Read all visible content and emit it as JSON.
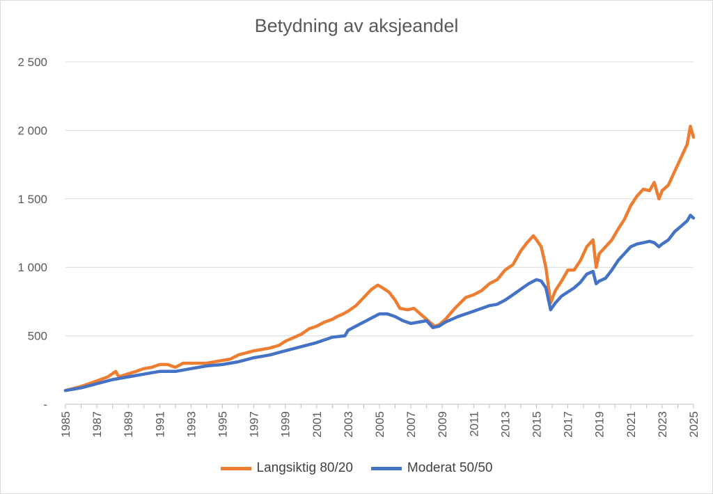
{
  "chart_data": {
    "type": "line",
    "title": "Betydning av aksjeandel",
    "xlabel": "",
    "ylabel": "",
    "xlim": [
      1985,
      2025
    ],
    "ylim": [
      0,
      2500
    ],
    "y_ticks": [
      0,
      500,
      1000,
      1500,
      2000,
      2500
    ],
    "y_tick_labels": [
      "-",
      "500",
      "1 000",
      "1 500",
      "2 000",
      "2 500"
    ],
    "x_tick_labels": [
      "1985",
      "1987",
      "1989",
      "1991",
      "1993",
      "1995",
      "1997",
      "1999",
      "2001",
      "2003",
      "2005",
      "2007",
      "2009",
      "2011",
      "2013",
      "2015",
      "2017",
      "2019",
      "2021",
      "2023",
      "2025"
    ],
    "grid": true,
    "legend": "bottom",
    "series": [
      {
        "name": "Langsiktig 80/20",
        "color": "#ED7D31",
        "x": [
          1985.0,
          1986.0,
          1986.5,
          1987.0,
          1987.7,
          1988.2,
          1988.4,
          1988.8,
          1989.5,
          1990.0,
          1990.5,
          1991.0,
          1991.5,
          1992.0,
          1992.5,
          1993.0,
          1994.0,
          1994.5,
          1995.0,
          1995.5,
          1996.0,
          1997.0,
          1998.0,
          1998.6,
          1999.0,
          2000.0,
          2000.5,
          2001.0,
          2001.5,
          2002.0,
          2002.3,
          2002.7,
          2003.0,
          2003.5,
          2004.0,
          2004.5,
          2004.9,
          2005.2,
          2005.6,
          2006.0,
          2006.3,
          2006.8,
          2007.2,
          2007.7,
          2008.0,
          2008.5,
          2008.8,
          2009.2,
          2009.8,
          2010.5,
          2011.0,
          2011.5,
          2012.0,
          2012.5,
          2013.0,
          2013.5,
          2014.0,
          2014.4,
          2014.8,
          2015.0,
          2015.3,
          2015.6,
          2015.9,
          2016.2,
          2016.6,
          2017.0,
          2017.4,
          2017.8,
          2018.2,
          2018.6,
          2018.8,
          2019.0,
          2019.4,
          2019.8,
          2020.2,
          2020.6,
          2021.0,
          2021.4,
          2021.8,
          2022.2,
          2022.5,
          2022.8,
          2023.0,
          2023.4,
          2023.8,
          2024.2,
          2024.6,
          2024.8,
          2025.0
        ],
        "values": [
          100,
          130,
          150,
          170,
          200,
          240,
          200,
          215,
          240,
          260,
          270,
          290,
          290,
          270,
          300,
          300,
          300,
          310,
          320,
          330,
          360,
          390,
          410,
          430,
          460,
          510,
          550,
          570,
          600,
          620,
          640,
          660,
          680,
          720,
          780,
          840,
          870,
          850,
          820,
          760,
          700,
          690,
          700,
          650,
          620,
          570,
          580,
          620,
          700,
          780,
          800,
          830,
          880,
          910,
          980,
          1020,
          1120,
          1180,
          1230,
          1200,
          1150,
          1000,
          740,
          830,
          900,
          980,
          980,
          1050,
          1150,
          1200,
          1000,
          1100,
          1150,
          1200,
          1280,
          1350,
          1450,
          1520,
          1570,
          1560,
          1620,
          1500,
          1560,
          1600,
          1700,
          1800,
          1900,
          2030,
          1950
        ]
      },
      {
        "name": "Moderat 50/50",
        "color": "#4472C4",
        "x": [
          1985.0,
          1986.0,
          1987.0,
          1988.0,
          1989.0,
          1990.0,
          1991.0,
          1992.0,
          1993.0,
          1994.0,
          1995.0,
          1996.0,
          1997.0,
          1998.0,
          1999.0,
          2000.0,
          2001.0,
          2002.0,
          2002.8,
          2003.0,
          2004.0,
          2004.5,
          2005.0,
          2005.5,
          2006.0,
          2006.5,
          2007.0,
          2007.5,
          2008.0,
          2008.4,
          2008.8,
          2009.2,
          2010.0,
          2010.5,
          2011.0,
          2011.5,
          2012.0,
          2012.5,
          2013.0,
          2013.5,
          2014.0,
          2014.5,
          2015.0,
          2015.3,
          2015.6,
          2015.9,
          2016.2,
          2016.6,
          2017.0,
          2017.4,
          2017.8,
          2018.2,
          2018.6,
          2018.8,
          2019.0,
          2019.4,
          2019.8,
          2020.2,
          2020.6,
          2021.0,
          2021.4,
          2021.8,
          2022.2,
          2022.5,
          2022.8,
          2023.0,
          2023.4,
          2023.8,
          2024.2,
          2024.6,
          2024.8,
          2025.0
        ],
        "values": [
          100,
          120,
          150,
          180,
          200,
          220,
          240,
          240,
          260,
          280,
          290,
          310,
          340,
          360,
          390,
          420,
          450,
          490,
          500,
          540,
          600,
          630,
          660,
          660,
          640,
          610,
          590,
          600,
          610,
          560,
          570,
          600,
          640,
          660,
          680,
          700,
          720,
          730,
          760,
          800,
          840,
          880,
          910,
          900,
          850,
          690,
          740,
          790,
          820,
          850,
          890,
          950,
          970,
          880,
          900,
          920,
          980,
          1050,
          1100,
          1150,
          1170,
          1180,
          1190,
          1180,
          1150,
          1170,
          1200,
          1260,
          1300,
          1340,
          1380,
          1360
        ]
      }
    ]
  }
}
